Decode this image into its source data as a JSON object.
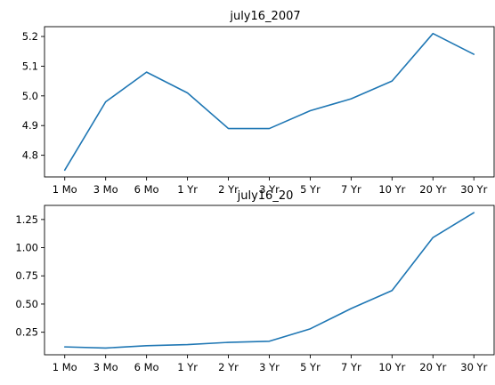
{
  "chart_data": [
    {
      "type": "line",
      "title": "july16_2007",
      "xlabel": "",
      "ylabel": "",
      "categories": [
        "1 Mo",
        "3 Mo",
        "6 Mo",
        "1 Yr",
        "2 Yr",
        "3 Yr",
        "5 Yr",
        "7 Yr",
        "10 Yr",
        "20 Yr",
        "30 Yr"
      ],
      "yticks": [
        "4.8",
        "4.9",
        "5.0",
        "5.1",
        "5.2"
      ],
      "ylim": [
        4.727,
        5.233
      ],
      "series": [
        {
          "color": "#1f77b4",
          "values": [
            4.75,
            4.98,
            5.08,
            5.01,
            4.89,
            4.89,
            4.95,
            4.99,
            5.05,
            5.21,
            5.14
          ]
        }
      ],
      "grid": false,
      "legend": "none"
    },
    {
      "type": "line",
      "title": "july16_20",
      "xlabel": "",
      "ylabel": "",
      "categories": [
        "1 Mo",
        "3 Mo",
        "6 Mo",
        "1 Yr",
        "2 Yr",
        "3 Yr",
        "5 Yr",
        "7 Yr",
        "10 Yr",
        "20 Yr",
        "30 Yr"
      ],
      "yticks": [
        "0.25",
        "0.50",
        "0.75",
        "1.00",
        "1.25"
      ],
      "ylim": [
        0.05,
        1.375
      ],
      "series": [
        {
          "color": "#1f77b4",
          "values": [
            0.12,
            0.11,
            0.13,
            0.14,
            0.16,
            0.17,
            0.28,
            0.46,
            0.62,
            1.09,
            1.31
          ]
        }
      ],
      "grid": false,
      "legend": "none"
    }
  ]
}
